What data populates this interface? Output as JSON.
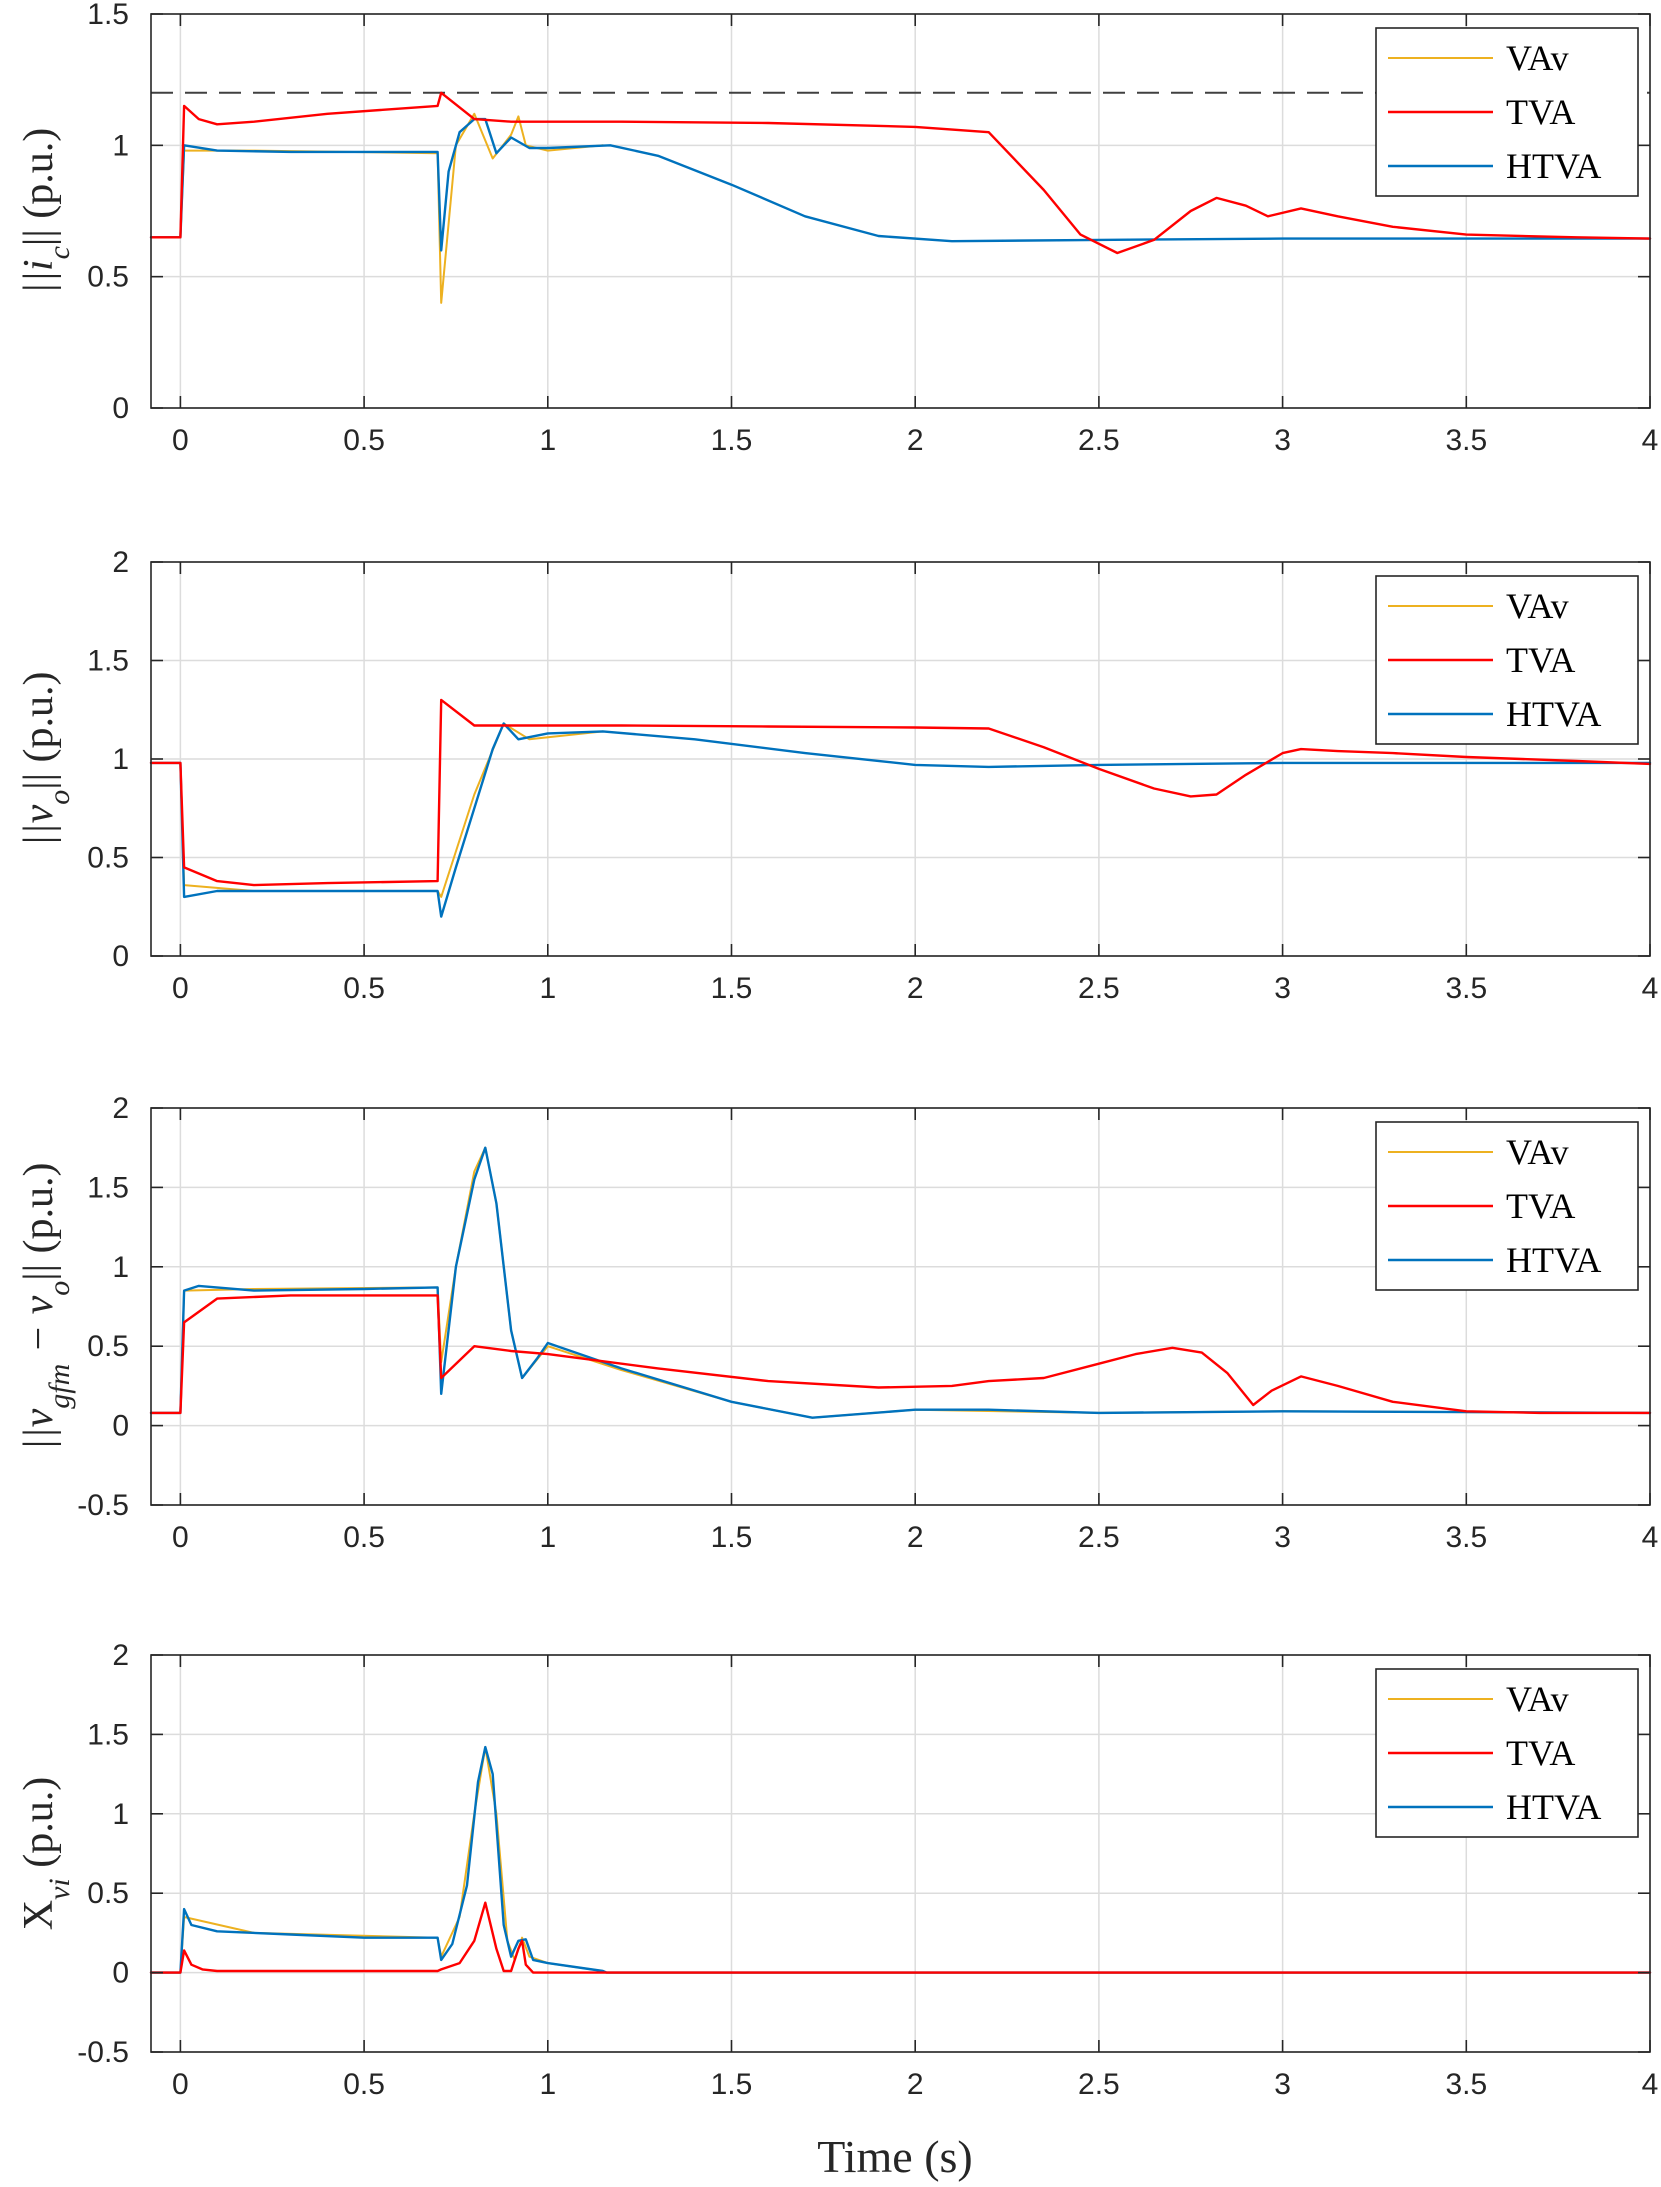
{
  "figure": {
    "xlabel": "Time (s)"
  },
  "colors": {
    "VAv": "#EDB120",
    "TVA": "#FF0000",
    "HTVA": "#0072BD",
    "threshold": "#404040"
  },
  "chart_data": [
    {
      "type": "line",
      "id": "ic",
      "ylabel": "||i_c|| (p.u.)",
      "ylabel_main": "||i",
      "ylabel_sub": "c",
      "ylabel_tail": "|| (p.u.)",
      "xlim": [
        -0.08,
        4
      ],
      "ylim": [
        0,
        1.5
      ],
      "xticks": [
        0,
        0.5,
        1,
        1.5,
        2,
        2.5,
        3,
        3.5,
        4
      ],
      "yticks": [
        0,
        0.5,
        1,
        1.5
      ],
      "xtick_labels": [
        "0",
        "0.5",
        "1",
        "1.5",
        "2",
        "2.5",
        "3",
        "3.5",
        "4"
      ],
      "ytick_labels": [
        "0",
        "0.5",
        "1",
        "1.5"
      ],
      "grid": true,
      "legend": {
        "position": "top-right",
        "entries": [
          "VAv",
          "TVA",
          "HTVA"
        ]
      },
      "threshold": 1.2,
      "series": [
        {
          "name": "VAv",
          "x": [
            -0.08,
            0,
            0.01,
            0.2,
            0.7,
            0.71,
            0.75,
            0.8,
            0.85,
            0.9,
            0.92,
            0.94,
            1.0,
            1.15
          ],
          "y": [
            0.65,
            0.65,
            0.98,
            0.98,
            0.97,
            0.4,
            1.0,
            1.12,
            0.95,
            1.04,
            1.11,
            1.0,
            0.98,
            1.0
          ]
        },
        {
          "name": "TVA",
          "x": [
            -0.08,
            0,
            0.01,
            0.05,
            0.1,
            0.2,
            0.4,
            0.7,
            0.71,
            0.8,
            0.9,
            1.2,
            1.6,
            2.0,
            2.2,
            2.35,
            2.45,
            2.55,
            2.65,
            2.75,
            2.82,
            2.9,
            2.96,
            3.05,
            3.15,
            3.3,
            3.5,
            3.8,
            4.0
          ],
          "y": [
            0.65,
            0.65,
            1.15,
            1.1,
            1.08,
            1.09,
            1.12,
            1.15,
            1.2,
            1.1,
            1.09,
            1.09,
            1.085,
            1.07,
            1.05,
            0.83,
            0.66,
            0.59,
            0.64,
            0.75,
            0.8,
            0.77,
            0.73,
            0.76,
            0.73,
            0.69,
            0.66,
            0.65,
            0.645
          ]
        },
        {
          "name": "HTVA",
          "x": [
            -0.08,
            0,
            0.01,
            0.1,
            0.3,
            0.5,
            0.7,
            0.71,
            0.73,
            0.76,
            0.8,
            0.83,
            0.86,
            0.9,
            0.95,
            1.0,
            1.17,
            1.3,
            1.5,
            1.7,
            1.9,
            2.1,
            2.5,
            3.0,
            3.5,
            4.0
          ],
          "y": [
            0.65,
            0.65,
            1.0,
            0.98,
            0.975,
            0.975,
            0.975,
            0.6,
            0.9,
            1.05,
            1.1,
            1.1,
            0.97,
            1.03,
            0.99,
            0.99,
            1.0,
            0.96,
            0.85,
            0.73,
            0.655,
            0.635,
            0.64,
            0.645,
            0.645,
            0.645
          ]
        }
      ]
    },
    {
      "type": "line",
      "id": "vo",
      "ylabel": "||v_o|| (p.u.)",
      "ylabel_main": "||v",
      "ylabel_sub": "o",
      "ylabel_tail": "|| (p.u.)",
      "xlim": [
        -0.08,
        4
      ],
      "ylim": [
        0,
        2
      ],
      "xticks": [
        0,
        0.5,
        1,
        1.5,
        2,
        2.5,
        3,
        3.5,
        4
      ],
      "yticks": [
        0,
        0.5,
        1,
        1.5,
        2
      ],
      "xtick_labels": [
        "0",
        "0.5",
        "1",
        "1.5",
        "2",
        "2.5",
        "3",
        "3.5",
        "4"
      ],
      "ytick_labels": [
        "0",
        "0.5",
        "1",
        "1.5",
        "2"
      ],
      "grid": true,
      "legend": {
        "position": "top-right",
        "entries": [
          "VAv",
          "TVA",
          "HTVA"
        ]
      },
      "series": [
        {
          "name": "VAv",
          "x": [
            -0.08,
            0,
            0.01,
            0.2,
            0.7,
            0.71,
            0.8,
            0.88,
            0.95,
            1.15
          ],
          "y": [
            0.98,
            0.98,
            0.36,
            0.33,
            0.33,
            0.3,
            0.82,
            1.18,
            1.1,
            1.14
          ]
        },
        {
          "name": "TVA",
          "x": [
            -0.08,
            0,
            0.01,
            0.1,
            0.2,
            0.4,
            0.7,
            0.71,
            0.8,
            0.9,
            1.2,
            1.6,
            2.0,
            2.2,
            2.35,
            2.5,
            2.65,
            2.75,
            2.82,
            2.9,
            3.0,
            3.05,
            3.15,
            3.3,
            3.5,
            3.8,
            4.0
          ],
          "y": [
            0.98,
            0.98,
            0.45,
            0.38,
            0.36,
            0.37,
            0.38,
            1.3,
            1.17,
            1.17,
            1.17,
            1.165,
            1.16,
            1.155,
            1.06,
            0.95,
            0.85,
            0.81,
            0.82,
            0.92,
            1.03,
            1.05,
            1.04,
            1.03,
            1.01,
            0.99,
            0.975
          ]
        },
        {
          "name": "HTVA",
          "x": [
            -0.08,
            0,
            0.01,
            0.1,
            0.2,
            0.5,
            0.7,
            0.71,
            0.75,
            0.8,
            0.85,
            0.88,
            0.92,
            1.0,
            1.15,
            1.4,
            1.7,
            2.0,
            2.2,
            2.5,
            3.0,
            3.5,
            4.0
          ],
          "y": [
            0.98,
            0.98,
            0.3,
            0.33,
            0.33,
            0.33,
            0.33,
            0.2,
            0.45,
            0.75,
            1.05,
            1.18,
            1.1,
            1.13,
            1.14,
            1.1,
            1.03,
            0.97,
            0.96,
            0.97,
            0.98,
            0.98,
            0.98
          ]
        }
      ]
    },
    {
      "type": "line",
      "id": "vdiff",
      "ylabel": "||v_gfm − v_o|| (p.u.)",
      "ylabel_main": "||v",
      "ylabel_sub": "gfm",
      "ylabel_mid": " − v",
      "ylabel_sub2": "o",
      "ylabel_tail": "|| (p.u.)",
      "xlim": [
        -0.08,
        4
      ],
      "ylim": [
        -0.5,
        2
      ],
      "xticks": [
        0,
        0.5,
        1,
        1.5,
        2,
        2.5,
        3,
        3.5,
        4
      ],
      "yticks": [
        -0.5,
        0,
        0.5,
        1,
        1.5,
        2
      ],
      "xtick_labels": [
        "0",
        "0.5",
        "1",
        "1.5",
        "2",
        "2.5",
        "3",
        "3.5",
        "4"
      ],
      "ytick_labels": [
        "-0.5",
        "0",
        "0.5",
        "1",
        "1.5",
        "2"
      ],
      "grid": true,
      "legend": {
        "position": "top-right",
        "entries": [
          "VAv",
          "TVA",
          "HTVA"
        ]
      },
      "series": [
        {
          "name": "VAv",
          "x": [
            -0.08,
            0,
            0.01,
            0.2,
            0.7,
            0.71,
            0.75,
            0.8,
            0.83,
            0.86,
            0.9,
            0.93,
            1.0,
            1.2,
            1.5,
            1.72,
            2.0,
            2.5,
            3.0,
            3.5,
            4.0
          ],
          "y": [
            0.08,
            0.08,
            0.85,
            0.86,
            0.87,
            0.4,
            1.0,
            1.6,
            1.75,
            1.4,
            0.6,
            0.3,
            0.5,
            0.35,
            0.15,
            0.05,
            0.1,
            0.08,
            0.09,
            0.085,
            0.08
          ]
        },
        {
          "name": "TVA",
          "x": [
            -0.08,
            0,
            0.01,
            0.1,
            0.3,
            0.7,
            0.71,
            0.8,
            0.9,
            1.0,
            1.3,
            1.6,
            1.9,
            2.1,
            2.2,
            2.35,
            2.5,
            2.6,
            2.7,
            2.78,
            2.85,
            2.92,
            2.97,
            3.05,
            3.15,
            3.3,
            3.5,
            3.7,
            4.0
          ],
          "y": [
            0.08,
            0.08,
            0.65,
            0.8,
            0.82,
            0.82,
            0.3,
            0.5,
            0.47,
            0.45,
            0.36,
            0.28,
            0.24,
            0.25,
            0.28,
            0.3,
            0.39,
            0.45,
            0.49,
            0.46,
            0.33,
            0.13,
            0.22,
            0.31,
            0.25,
            0.15,
            0.09,
            0.08,
            0.08
          ]
        },
        {
          "name": "HTVA",
          "x": [
            -0.08,
            0,
            0.01,
            0.05,
            0.2,
            0.5,
            0.7,
            0.71,
            0.75,
            0.8,
            0.83,
            0.86,
            0.9,
            0.93,
            0.97,
            1.0,
            1.05,
            1.2,
            1.5,
            1.72,
            2.0,
            2.2,
            2.5,
            3.0,
            3.5,
            4.0
          ],
          "y": [
            0.08,
            0.08,
            0.85,
            0.88,
            0.85,
            0.86,
            0.87,
            0.2,
            1.0,
            1.55,
            1.75,
            1.4,
            0.6,
            0.3,
            0.42,
            0.52,
            0.48,
            0.36,
            0.15,
            0.05,
            0.1,
            0.1,
            0.08,
            0.09,
            0.085,
            0.08
          ]
        }
      ]
    },
    {
      "type": "line",
      "id": "xvi",
      "ylabel": "X_vi (p.u.)",
      "ylabel_main": "X",
      "ylabel_sub": "vi",
      "ylabel_tail": " (p.u.)",
      "xlim": [
        -0.08,
        4
      ],
      "ylim": [
        -0.5,
        2
      ],
      "xticks": [
        0,
        0.5,
        1,
        1.5,
        2,
        2.5,
        3,
        3.5,
        4
      ],
      "yticks": [
        -0.5,
        0,
        0.5,
        1,
        1.5,
        2
      ],
      "xtick_labels": [
        "0",
        "0.5",
        "1",
        "1.5",
        "2",
        "2.5",
        "3",
        "3.5",
        "4"
      ],
      "ytick_labels": [
        "-0.5",
        "0",
        "0.5",
        "1",
        "1.5",
        "2"
      ],
      "grid": true,
      "legend": {
        "position": "top-right",
        "entries": [
          "VAv",
          "TVA",
          "HTVA"
        ]
      },
      "series": [
        {
          "name": "VAv",
          "x": [
            -0.08,
            0,
            0.01,
            0.2,
            0.7,
            0.71,
            0.76,
            0.8,
            0.83,
            0.86,
            0.89,
            0.91,
            0.93,
            0.95,
            1.0,
            1.15,
            1.16,
            4.0
          ],
          "y": [
            0,
            0,
            0.35,
            0.25,
            0.22,
            0.1,
            0.35,
            1.0,
            1.42,
            1.0,
            0.2,
            0.08,
            0.22,
            0.1,
            0.06,
            0.01,
            0,
            0
          ]
        },
        {
          "name": "TVA",
          "x": [
            -0.08,
            0,
            0.01,
            0.03,
            0.06,
            0.1,
            0.7,
            0.71,
            0.76,
            0.8,
            0.83,
            0.86,
            0.88,
            0.9,
            0.92,
            0.93,
            0.94,
            0.96,
            1.0,
            4.0
          ],
          "y": [
            0,
            0,
            0.14,
            0.05,
            0.02,
            0.01,
            0.01,
            0.02,
            0.06,
            0.2,
            0.44,
            0.15,
            0.01,
            0.01,
            0.15,
            0.2,
            0.05,
            0.0,
            0,
            0
          ]
        },
        {
          "name": "HTVA",
          "x": [
            -0.08,
            0,
            0.01,
            0.03,
            0.1,
            0.3,
            0.5,
            0.7,
            0.71,
            0.74,
            0.78,
            0.81,
            0.83,
            0.85,
            0.88,
            0.9,
            0.92,
            0.94,
            0.96,
            1.0,
            1.15,
            1.16,
            4.0
          ],
          "y": [
            0,
            0,
            0.4,
            0.3,
            0.26,
            0.24,
            0.22,
            0.22,
            0.08,
            0.18,
            0.55,
            1.2,
            1.42,
            1.25,
            0.3,
            0.1,
            0.2,
            0.21,
            0.08,
            0.06,
            0.01,
            0,
            0
          ]
        }
      ]
    }
  ]
}
